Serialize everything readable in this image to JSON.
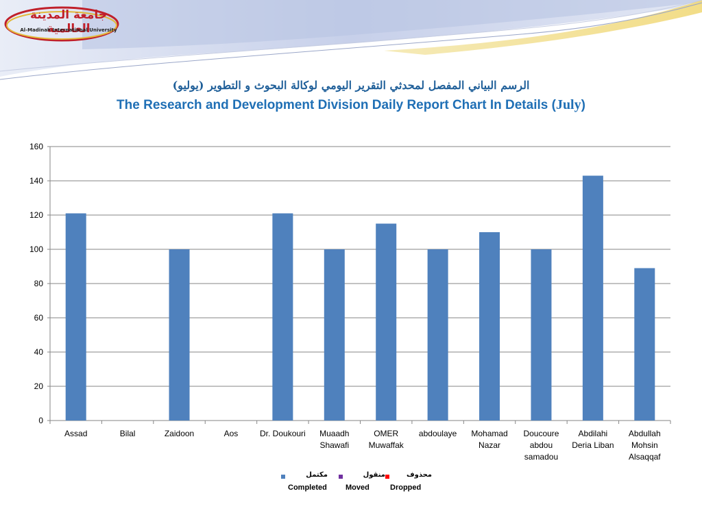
{
  "logo": {
    "arabic_name": "جامعة المدينة العالمية",
    "english_name": "Al-Madinah International University"
  },
  "titles": {
    "arabic": "الرسم البياني المفصل لمحدثي التقرير اليومي لوكالة البحوث و التطوير (يوليو)",
    "english_main": "The Research and Development Division Daily Report Chart In Details (",
    "english_month": "July",
    "english_close": ")"
  },
  "colors": {
    "completed": "#4f81bd",
    "moved": "#7030a0",
    "dropped": "#ff0000",
    "title": "#1f6fb5",
    "grid": "#868686"
  },
  "legend": [
    {
      "key": "completed",
      "arabic": "مكتمل",
      "english": "Completed"
    },
    {
      "key": "moved",
      "arabic": "منقول",
      "english": "Moved"
    },
    {
      "key": "dropped",
      "arabic": "محذوف",
      "english": "Dropped"
    }
  ],
  "chart_data": {
    "type": "bar",
    "categories": [
      [
        "Assad"
      ],
      [
        "Bilal"
      ],
      [
        "Zaidoon"
      ],
      [
        "Aos"
      ],
      [
        "Dr. Doukouri"
      ],
      [
        "Muaadh",
        "Shawafi"
      ],
      [
        "OMER",
        "Muwaffak"
      ],
      [
        "abdoulaye"
      ],
      [
        "Mohamad",
        "Nazar"
      ],
      [
        "Doucoure",
        "abdou",
        "samadou"
      ],
      [
        "Abdilahi",
        "Deria Liban"
      ],
      [
        "Abdullah",
        "Mohsin",
        "Alsaqqaf"
      ]
    ],
    "series": [
      {
        "name": "Completed",
        "values": [
          121,
          0,
          100,
          0,
          121,
          100,
          115,
          100,
          110,
          100,
          143,
          89
        ]
      },
      {
        "name": "Moved",
        "values": [
          0,
          0,
          0,
          0,
          0,
          0,
          0,
          0,
          0,
          0,
          0,
          0
        ]
      },
      {
        "name": "Dropped",
        "values": [
          0,
          0,
          0,
          0,
          0,
          0,
          0,
          0,
          0,
          0,
          0,
          0
        ]
      }
    ],
    "ylim": [
      0,
      160
    ],
    "yticks": [
      0,
      20,
      40,
      60,
      80,
      100,
      120,
      140,
      160
    ],
    "grid": true,
    "legend_position": "bottom"
  }
}
